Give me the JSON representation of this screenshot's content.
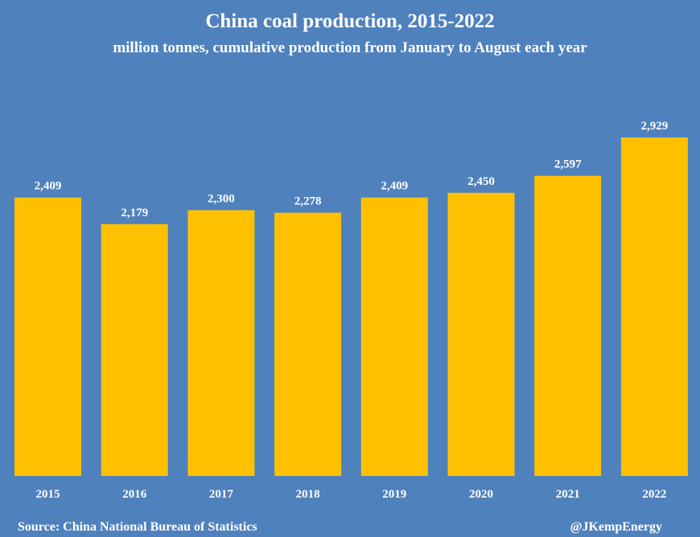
{
  "colors": {
    "background": "#4f81bd",
    "bar": "#ffc000",
    "text": "#ffffff"
  },
  "chart_data": {
    "type": "bar",
    "title": "China coal production, 2015-2022",
    "subtitle": "million tonnes, cumulative production from January to August each year",
    "categories": [
      "2015",
      "2016",
      "2017",
      "2018",
      "2019",
      "2020",
      "2021",
      "2022"
    ],
    "values": [
      2409,
      2179,
      2300,
      2278,
      2409,
      2450,
      2597,
      2929
    ],
    "value_labels": [
      "2,409",
      "2,179",
      "2,300",
      "2,278",
      "2,409",
      "2,450",
      "2,597",
      "2,929"
    ],
    "xlabel": "",
    "ylabel": "",
    "ylim": [
      0,
      2929
    ],
    "grid": false,
    "legend": "none"
  },
  "footer": {
    "source": "Source: China National Bureau of Statistics",
    "credit": "@JKempEnergy"
  }
}
